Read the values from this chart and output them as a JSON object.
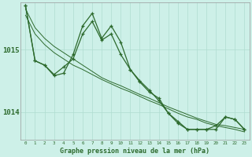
{
  "title": "Graphe pression niveau de la mer (hPa)",
  "background_color": "#cdf0e8",
  "grid_color": "#b0ddd0",
  "line_color": "#2d6a2d",
  "ylim": [
    1013.55,
    1015.75
  ],
  "yticks": [
    1014.0,
    1015.0
  ],
  "xlim": [
    -0.5,
    23.5
  ],
  "series": {
    "s1": [
      1015.7,
      1014.82,
      1014.75,
      1014.6,
      1014.72,
      1014.85,
      1015.25,
      1015.45,
      1015.15,
      1015.25,
      1014.92,
      1014.68,
      1014.5,
      1014.35,
      1014.18,
      1013.98,
      1013.85,
      1013.72,
      1013.72,
      1013.72,
      1013.78,
      1013.92,
      1013.88,
      1013.72
    ],
    "s2": [
      1015.7,
      1014.82,
      1014.75,
      1014.58,
      1014.62,
      1014.92,
      1015.38,
      1015.58,
      1015.18,
      1015.38,
      1015.12,
      1014.68,
      1014.48,
      1014.32,
      1014.22,
      1013.98,
      1013.82,
      1013.72,
      1013.72,
      1013.72,
      1013.72,
      1013.92,
      1013.88,
      1013.72
    ],
    "s3_x": [
      0,
      1,
      2,
      3,
      4,
      5,
      6,
      7,
      8,
      9,
      10,
      11,
      12,
      13,
      14,
      15,
      16,
      17,
      18,
      19,
      20,
      21,
      22,
      23
    ],
    "s3": [
      1015.65,
      1014.78,
      1014.72,
      1014.52,
      1014.52,
      1014.62,
      1014.72,
      1014.82,
      1014.72,
      1014.68,
      1014.55,
      1014.38,
      1014.28,
      1014.18,
      1014.08,
      1013.88,
      1013.78,
      1013.68,
      1013.68,
      1013.68,
      1013.68,
      1013.78,
      1013.72,
      1013.68
    ],
    "s4_x": [
      0,
      1,
      2,
      3,
      4,
      5,
      6,
      7,
      8,
      9,
      10,
      11,
      12,
      13,
      14,
      15,
      16,
      17,
      18,
      19,
      20,
      21,
      22,
      23
    ],
    "s4": [
      1015.65,
      1014.78,
      1014.72,
      1014.52,
      1014.52,
      1014.62,
      1014.72,
      1014.82,
      1014.72,
      1014.68,
      1014.55,
      1014.38,
      1014.28,
      1014.18,
      1014.08,
      1013.88,
      1013.78,
      1013.68,
      1013.68,
      1013.68,
      1013.68,
      1013.78,
      1013.72,
      1013.68
    ]
  },
  "smooth_line1": [
    1015.65,
    1015.35,
    1015.18,
    1015.05,
    1014.95,
    1014.85,
    1014.75,
    1014.65,
    1014.55,
    1014.48,
    1014.42,
    1014.35,
    1014.28,
    1014.22,
    1014.15,
    1014.08,
    1014.02,
    1013.96,
    1013.9,
    1013.85,
    1013.8,
    1013.78,
    1013.75,
    1013.72
  ],
  "smooth_line2": [
    1015.55,
    1015.25,
    1015.08,
    1014.95,
    1014.85,
    1014.75,
    1014.68,
    1014.6,
    1014.52,
    1014.45,
    1014.38,
    1014.32,
    1014.25,
    1014.18,
    1014.12,
    1014.05,
    1013.98,
    1013.92,
    1013.88,
    1013.82,
    1013.78,
    1013.75,
    1013.72,
    1013.68
  ]
}
